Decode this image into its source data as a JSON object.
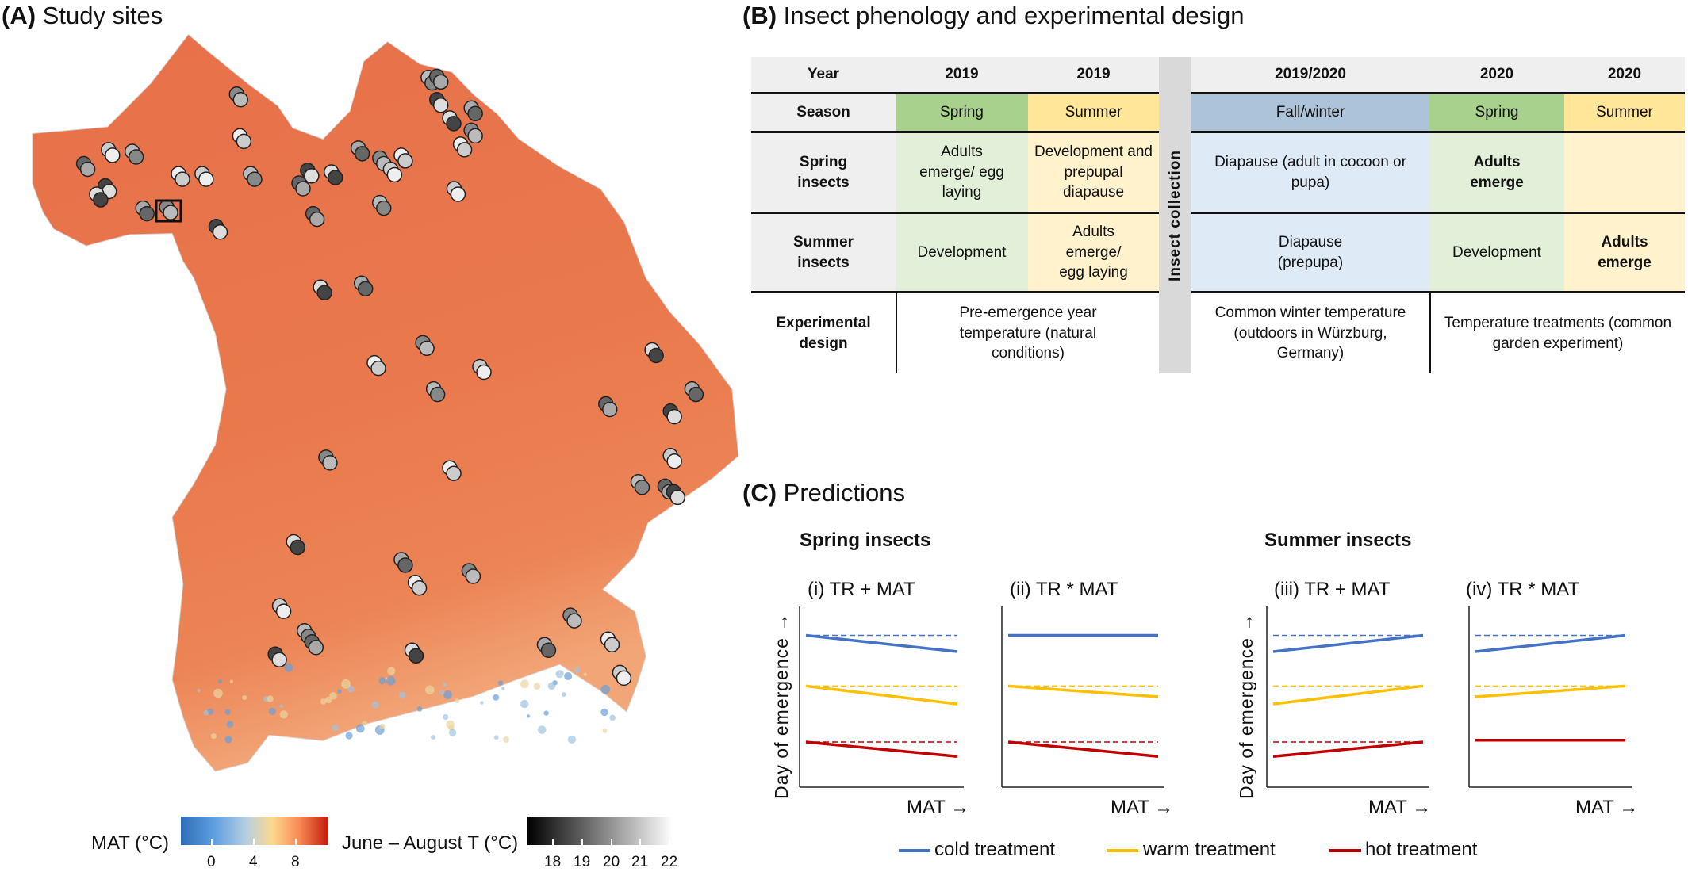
{
  "panel_a": {
    "letter": "(A)",
    "title": "Study sites",
    "map_color": "#ea7a4c",
    "mat_legend": {
      "label": "MAT (°C)",
      "ticks": [
        "0",
        "4",
        "8"
      ],
      "colors": [
        "#2f6eb5",
        "#5b9ee0",
        "#b9d0df",
        "#fbd98f",
        "#f88b55",
        "#c41c0b"
      ]
    },
    "summer_legend": {
      "label": "June – August T (°C)",
      "ticks": [
        "18",
        "19",
        "20",
        "21",
        "22"
      ],
      "colors": [
        "#000000",
        "#ffffff"
      ]
    }
  },
  "panel_b": {
    "letter": "(B)",
    "title": "Insect phenology and experimental design",
    "collection_label": "Insect collection",
    "year_row": {
      "label": "Year",
      "cells": [
        "2019",
        "2019",
        "2019/2020",
        "2020",
        "2020"
      ]
    },
    "season_row": {
      "label": "Season",
      "cells": [
        "Spring",
        "Summer",
        "Fall/winter",
        "Spring",
        "Summer"
      ]
    },
    "spring_row": {
      "label": "Spring insects",
      "cells": [
        "Adults emerge/ egg laying",
        "Development and prepupal diapause",
        "Diapause (adult in cocoon or pupa)",
        "Adults emerge",
        ""
      ]
    },
    "summer_row": {
      "label": "Summer insects",
      "cells": [
        "Development",
        "Adults emerge/ egg laying",
        "Diapause (prepupa)",
        "Development",
        "Adults emerge"
      ]
    },
    "design_row": {
      "label": "Experimental design",
      "cells": [
        "Pre-emergence year temperature (natural conditions)",
        "Common winter temperature (outdoors in Würzburg, Germany)",
        "Temperature treatments (common garden experiment)"
      ]
    },
    "colors": {
      "spring": "#a9d18e",
      "summer": "#ffe699",
      "fall_winter": "#adc3d9"
    }
  },
  "panel_c": {
    "letter": "(C)",
    "title": "Predictions",
    "group_spring": "Spring insects",
    "group_summer": "Summer insects",
    "ylabel": "Day of emergence →",
    "xlabel": "MAT →",
    "legend": [
      {
        "label": "cold treatment",
        "color": "#4472c4"
      },
      {
        "label": "warm treatment",
        "color": "#ffc000"
      },
      {
        "label": "hot treatment",
        "color": "#c00000"
      }
    ],
    "plots": [
      {
        "title": "(i) TR + MAT",
        "lines": [
          {
            "treatment": "cold",
            "start": 0.84,
            "end": 0.75,
            "reference": 0.84
          },
          {
            "treatment": "warm",
            "start": 0.56,
            "end": 0.46,
            "reference": 0.56
          },
          {
            "treatment": "hot",
            "start": 0.25,
            "end": 0.17,
            "reference": 0.25
          }
        ]
      },
      {
        "title": "(ii) TR * MAT",
        "lines": [
          {
            "treatment": "cold",
            "start": 0.84,
            "end": 0.84,
            "reference": null
          },
          {
            "treatment": "warm",
            "start": 0.56,
            "end": 0.5,
            "reference": 0.56
          },
          {
            "treatment": "hot",
            "start": 0.25,
            "end": 0.17,
            "reference": 0.25
          }
        ]
      },
      {
        "title": "(iii) TR + MAT",
        "lines": [
          {
            "treatment": "cold",
            "start": 0.75,
            "end": 0.84,
            "reference": 0.84
          },
          {
            "treatment": "warm",
            "start": 0.46,
            "end": 0.56,
            "reference": 0.56
          },
          {
            "treatment": "hot",
            "start": 0.17,
            "end": 0.25,
            "reference": 0.25
          }
        ]
      },
      {
        "title": "(iv) TR * MAT",
        "lines": [
          {
            "treatment": "cold",
            "start": 0.75,
            "end": 0.84,
            "reference": 0.84
          },
          {
            "treatment": "warm",
            "start": 0.5,
            "end": 0.56,
            "reference": 0.56
          },
          {
            "treatment": "hot",
            "start": 0.26,
            "end": 0.26,
            "reference": null
          }
        ]
      }
    ]
  }
}
